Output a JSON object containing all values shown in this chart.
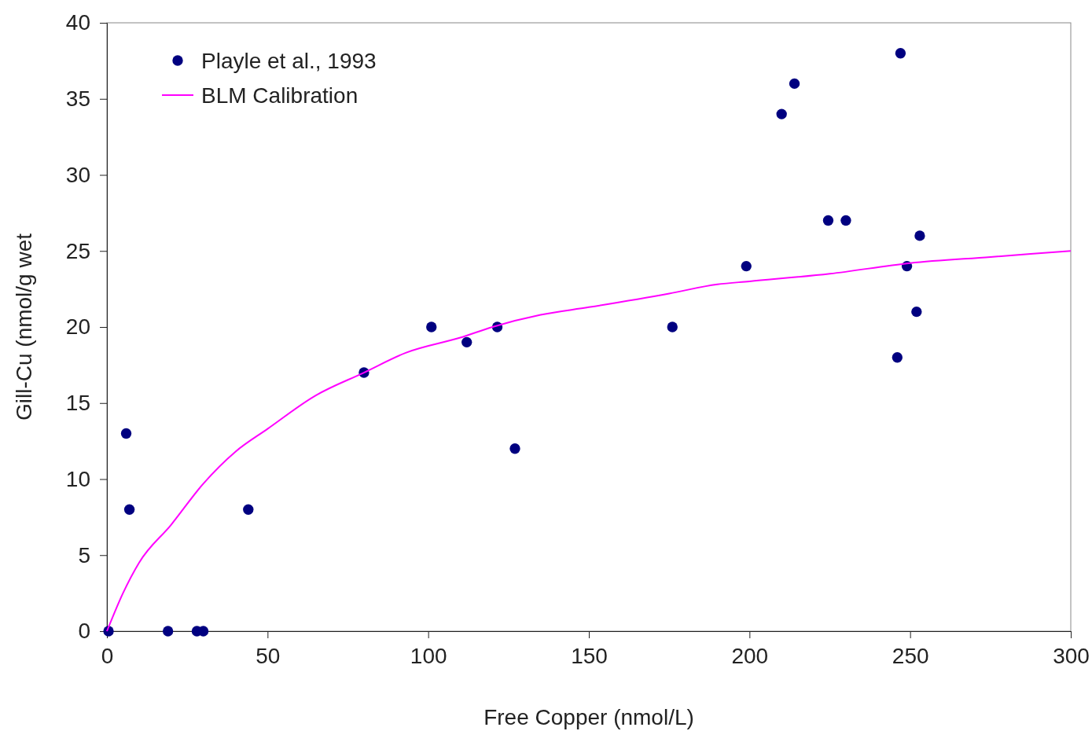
{
  "chart_data": {
    "type": "scatter",
    "xlabel": "Free Copper (nmol/L)",
    "ylabel": "Gill-Cu (nmol/g wet",
    "xlim": [
      0,
      300
    ],
    "ylim": [
      0,
      40
    ],
    "xticks": [
      0,
      50,
      100,
      150,
      200,
      250,
      300
    ],
    "yticks": [
      0,
      5,
      10,
      15,
      20,
      25,
      30,
      35,
      40
    ],
    "grid": false,
    "legend": "top left",
    "marker": "circle",
    "series": [
      {
        "name": "Playle et al., 1993",
        "color": "#000080",
        "x": [
          0.5,
          6,
          7,
          19,
          28,
          30,
          44,
          80,
          101,
          112,
          121.5,
          127,
          176,
          199,
          210,
          214,
          224.5,
          230,
          247,
          246,
          249,
          252,
          253
        ],
        "values": [
          0,
          13,
          8,
          0,
          0,
          0,
          8,
          17,
          20,
          19,
          20,
          12,
          20,
          24,
          34,
          36,
          27,
          27,
          38,
          18,
          24,
          21,
          26
        ]
      },
      {
        "name": "BLM Calibration",
        "type": "line",
        "marker": "none",
        "color": "#ff00ff",
        "line_style": "solid",
        "x": [
          0,
          5,
          10,
          20,
          30,
          40,
          50,
          65,
          80,
          93,
          110,
          120,
          135,
          150,
          175,
          190,
          200,
          225,
          250,
          275,
          300
        ],
        "values": [
          0,
          2.5,
          4.5,
          7,
          9.7,
          11.8,
          13.3,
          15.5,
          17,
          18.3,
          19.3,
          20,
          20.8,
          21.3,
          22.2,
          22.8,
          23,
          23.5,
          24.2,
          24.6,
          25
        ]
      }
    ]
  }
}
